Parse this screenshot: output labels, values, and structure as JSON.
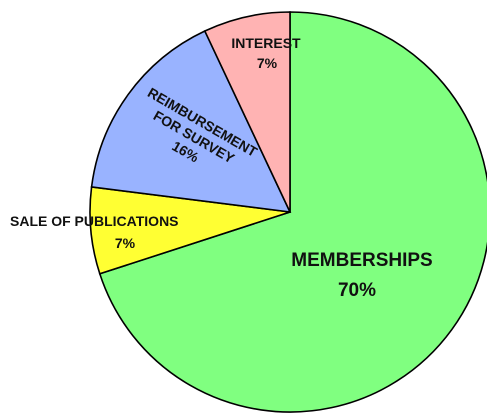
{
  "chart_data": {
    "type": "pie",
    "slices": [
      {
        "label": "MEMBERSHIPS",
        "value": 70,
        "value_label": "70%",
        "color": "#80ff80"
      },
      {
        "label": "SALE OF PUBLICATIONS",
        "value": 7,
        "value_label": "7%",
        "color": "#ffff33"
      },
      {
        "label": "REIMBURSEMENT FOR SURVEY",
        "label_lines": [
          "REIMBURSEMENT",
          "FOR SURVEY"
        ],
        "value": 16,
        "value_label": "16%",
        "color": "#99b3ff"
      },
      {
        "label": "INTEREST",
        "value": 7,
        "value_label": "7%",
        "color": "#ffb3b3"
      }
    ],
    "start_angle": "12 o'clock",
    "direction": "clockwise",
    "legend": "none",
    "edge_color": "#000000"
  }
}
